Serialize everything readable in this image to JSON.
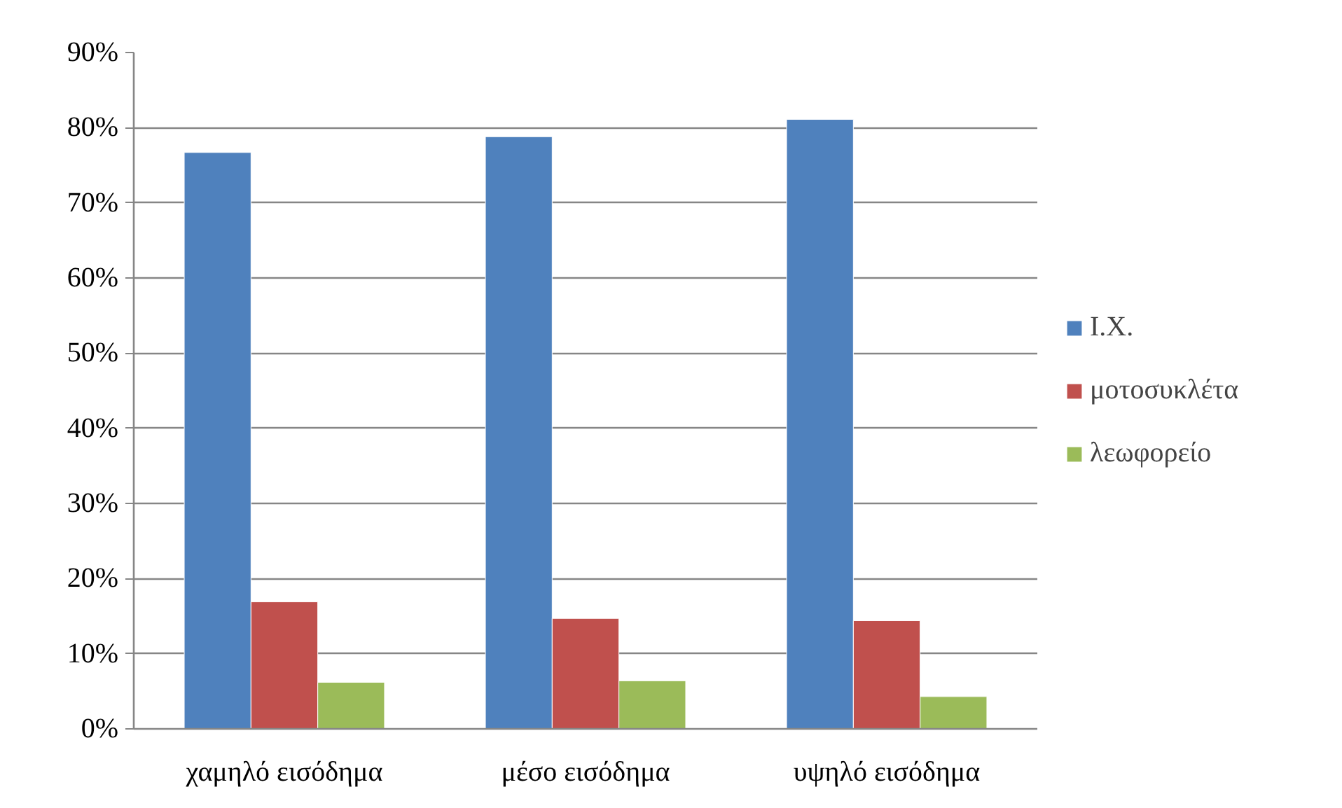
{
  "chart_data": {
    "type": "bar",
    "categories": [
      "χαμηλό εισόδημα",
      "μέσο εισόδημα",
      "υψηλό εισόδημα"
    ],
    "series": [
      {
        "name": "Ι.Χ.",
        "color": "#4f81bd",
        "values": [
          76.7,
          78.8,
          81.1
        ]
      },
      {
        "name": "μοτοσυκλέτα",
        "color": "#c0504d",
        "values": [
          16.9,
          14.7,
          14.4
        ]
      },
      {
        "name": "λεωφορείο",
        "color": "#9bbb59",
        "values": [
          6.2,
          6.4,
          4.3
        ]
      }
    ],
    "ylim": [
      0,
      90
    ],
    "yticks": [
      {
        "value": 0,
        "label": "0%"
      },
      {
        "value": 10,
        "label": "10%"
      },
      {
        "value": 20,
        "label": "20%"
      },
      {
        "value": 30,
        "label": "30%"
      },
      {
        "value": 40,
        "label": "40%"
      },
      {
        "value": 50,
        "label": "50%"
      },
      {
        "value": 60,
        "label": "60%"
      },
      {
        "value": 70,
        "label": "70%"
      },
      {
        "value": 80,
        "label": "80%"
      },
      {
        "value": 90,
        "label": "90%"
      }
    ],
    "grid": "y",
    "legend": "right"
  }
}
